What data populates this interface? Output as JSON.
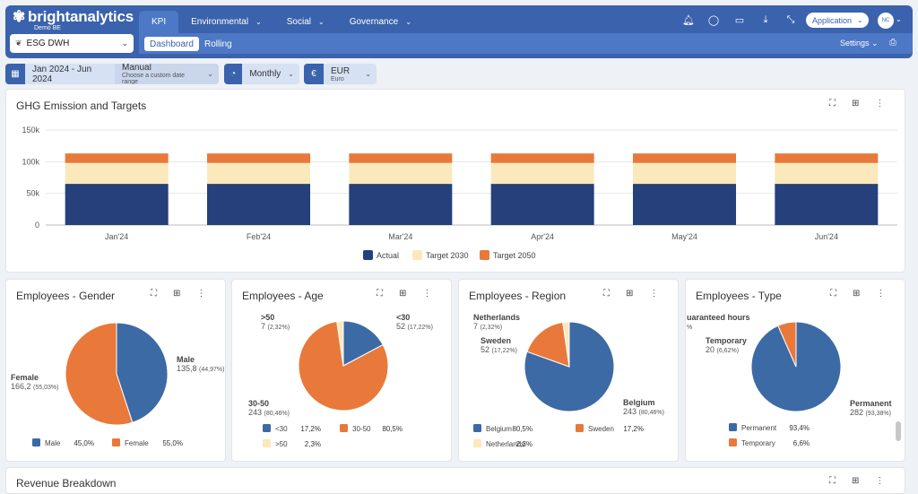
{
  "header": {
    "brand": "brightanalytics",
    "brand_sub": "Demo BE",
    "workspace": "ESG DWH",
    "tabs": [
      {
        "label": "KPI"
      },
      {
        "label": "Environmental"
      },
      {
        "label": "Social"
      },
      {
        "label": "Governance"
      }
    ],
    "subtabs": [
      {
        "label": "Dashboard"
      },
      {
        "label": "Rolling"
      }
    ],
    "settings_label": "Settings",
    "application_label": "Application",
    "avatar_initials": "NC"
  },
  "filters": {
    "date_range": "Jan 2024 - Jun 2024",
    "mode": "Manual",
    "mode_hint": "Choose a custom date range",
    "frequency": "Monthly",
    "currency": "EUR",
    "currency_name": "Euro"
  },
  "colors": {
    "primary": "#3a62ad",
    "navy": "#25407a",
    "beige": "#fbe9bb",
    "orange": "#e8793a",
    "steel": "#3c6aa5"
  },
  "ghg": {
    "title": "GHG Emission and Targets"
  },
  "revenue": {
    "title": "Revenue Breakdown"
  },
  "chart_data": [
    {
      "type": "bar",
      "title": "GHG Emission and Targets",
      "stacked": true,
      "categories": [
        "Jan'24",
        "Feb'24",
        "Mar'24",
        "Apr'24",
        "May'24",
        "Jun'24"
      ],
      "series": [
        {
          "name": "Actual",
          "values": [
            65000,
            65000,
            65000,
            65000,
            65000,
            65000
          ],
          "color": "#25407a"
        },
        {
          "name": "Target 2030",
          "values": [
            33000,
            33000,
            33000,
            33000,
            33000,
            33000
          ],
          "color": "#fbe9bb"
        },
        {
          "name": "Target 2050",
          "values": [
            15000,
            15000,
            15000,
            15000,
            15000,
            15000
          ],
          "color": "#e8793a"
        }
      ],
      "yticks": [
        "0",
        "50k",
        "100k",
        "150k"
      ],
      "ylim": [
        0,
        150000
      ],
      "legend": "bottom"
    },
    {
      "type": "pie",
      "title": "Employees - Gender",
      "slices": [
        {
          "name": "Male",
          "value": 135.8,
          "pct": "44,97%",
          "value_label": "135,8",
          "color": "#3c6aa5",
          "table_pct": "45,0%"
        },
        {
          "name": "Female",
          "value": 166.2,
          "pct": "55,03%",
          "value_label": "166,2",
          "color": "#e8793a",
          "table_pct": "55,0%"
        }
      ]
    },
    {
      "type": "pie",
      "title": "Employees - Age",
      "slices": [
        {
          "name": "<30",
          "value": 52,
          "pct": "17,22%",
          "value_label": "52",
          "color": "#3c6aa5",
          "table_pct": "17,2%"
        },
        {
          "name": "30-50",
          "value": 243,
          "pct": "80,46%",
          "value_label": "243",
          "color": "#e8793a",
          "table_pct": "80,5%"
        },
        {
          "name": ">50",
          "value": 7,
          "pct": "2,32%",
          "value_label": "7",
          "color": "#fbe9bb",
          "table_pct": "2,3%"
        }
      ]
    },
    {
      "type": "pie",
      "title": "Employees - Region",
      "slices": [
        {
          "name": "Belgium",
          "value": 243,
          "pct": "80,46%",
          "value_label": "243",
          "color": "#3c6aa5",
          "table_pct": "80,5%"
        },
        {
          "name": "Sweden",
          "value": 52,
          "pct": "17,22%",
          "value_label": "52",
          "color": "#e8793a",
          "table_pct": "17,2%"
        },
        {
          "name": "Netherlands",
          "value": 7,
          "pct": "2,32%",
          "value_label": "7",
          "color": "#fbe9bb",
          "table_pct": "2,3%"
        }
      ]
    },
    {
      "type": "pie",
      "title": "Employees - Type",
      "slices": [
        {
          "name": "Permanent",
          "value": 282,
          "pct": "93,38%",
          "value_label": "282",
          "color": "#3c6aa5",
          "table_pct": "93,4%"
        },
        {
          "name": "Temporary",
          "value": 20,
          "pct": "6,62%",
          "value_label": "20",
          "color": "#e8793a",
          "table_pct": "6,6%"
        }
      ],
      "extra_label": "uaranteed hours",
      "extra_label2": "%"
    }
  ]
}
